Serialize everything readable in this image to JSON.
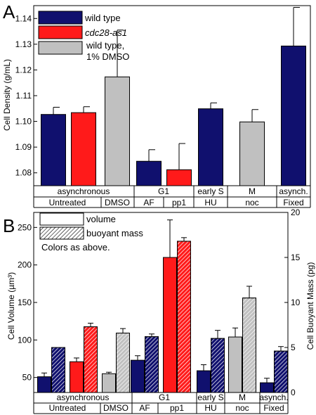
{
  "colors": {
    "wild_type": "#10106e",
    "cdc28": "#ff1a1a",
    "dmso": "#c0c0c0",
    "axis": "#000000"
  },
  "panel_a": {
    "letter": "A",
    "ylabel": "Cell Density (g/mL)",
    "yticks": [
      "1.08",
      "1.09",
      "1.10",
      "1.11",
      "1.12",
      "1.13",
      "1.14"
    ],
    "legend": [
      {
        "label": "wild type",
        "color_key": "wild_type",
        "italic": false
      },
      {
        "label": "cdc28-as1",
        "color_key": "cdc28",
        "italic": true
      },
      {
        "label_line1": "wild type,",
        "label_line2": "1% DMSO",
        "color_key": "dmso",
        "italic": false
      }
    ],
    "row1": [
      "asynchronous",
      "G1",
      "early S",
      "M",
      "asynch."
    ],
    "row2": [
      "Untreated",
      "DMSO",
      "AF",
      "pp1",
      "HU",
      "noc",
      "Fixed"
    ]
  },
  "panel_b": {
    "letter": "B",
    "ylabel_left": "Cell Volume (µm³)",
    "ylabel_right": "Cell Buoyant Mass (pg)",
    "yticks_left": [
      "50",
      "100",
      "150",
      "200",
      "250"
    ],
    "yticks_right": [
      "0",
      "5",
      "10",
      "15",
      "20"
    ],
    "legend": [
      {
        "label": "volume",
        "style": "open"
      },
      {
        "label": "buoyant mass",
        "style": "hatched"
      }
    ],
    "note": "Colors as above.",
    "row1": [
      "asynchronous",
      "G1",
      "early S",
      "M",
      "asynch."
    ],
    "row2": [
      "Untreated",
      "DMSO",
      "AF",
      "pp1",
      "HU",
      "noc",
      "Fixed"
    ]
  },
  "chart_data": [
    {
      "type": "bar",
      "title": "",
      "ylabel": "Cell Density (g/mL)",
      "ylim": [
        1.075,
        1.145
      ],
      "categories": [
        "Untreated wild type",
        "Untreated cdc28-as1",
        "DMSO wild type 1% DMSO",
        "G1 AF",
        "G1 pp1",
        "early S HU",
        "M noc",
        "asynch. Fixed"
      ],
      "values": [
        1.1027,
        1.1034,
        1.1173,
        1.0845,
        1.0812,
        1.1049,
        1.0998,
        1.1293
      ],
      "errors": [
        0.0028,
        0.0023,
        0.0182,
        0.0045,
        0.0102,
        0.0023,
        0.0048,
        0.015
      ],
      "color_keys": [
        "wild_type",
        "cdc28",
        "dmso",
        "wild_type",
        "cdc28",
        "wild_type",
        "dmso",
        "wild_type"
      ],
      "grid": false,
      "legend_position": "top-left"
    },
    {
      "type": "bar",
      "title": "",
      "ylabel": "Cell Volume (µm³)",
      "y2label": "Cell Buoyant Mass (pg)",
      "ylim": [
        30,
        270
      ],
      "y2lim": [
        0,
        20
      ],
      "groups": [
        "Untreated wild type",
        "Untreated cdc28-as1",
        "DMSO",
        "G1 AF",
        "G1 pp1",
        "early S HU",
        "M noc",
        "asynch. Fixed"
      ],
      "series": [
        {
          "name": "volume",
          "values": [
            51,
            71,
            55,
            73,
            210,
            59,
            104,
            43
          ],
          "errors": [
            5,
            5,
            2,
            6,
            50,
            8,
            12,
            6
          ]
        },
        {
          "name": "buoyant mass",
          "values": [
            5.0,
            7.3,
            6.6,
            6.2,
            16.8,
            6.0,
            10.5,
            4.6
          ],
          "errors": [
            0,
            0.4,
            0.5,
            0.3,
            0.4,
            0.9,
            1.3,
            0.5
          ]
        }
      ],
      "color_keys": [
        "wild_type",
        "cdc28",
        "dmso",
        "wild_type",
        "cdc28",
        "wild_type",
        "dmso",
        "wild_type"
      ],
      "grid": false,
      "legend_position": "top-left"
    }
  ]
}
